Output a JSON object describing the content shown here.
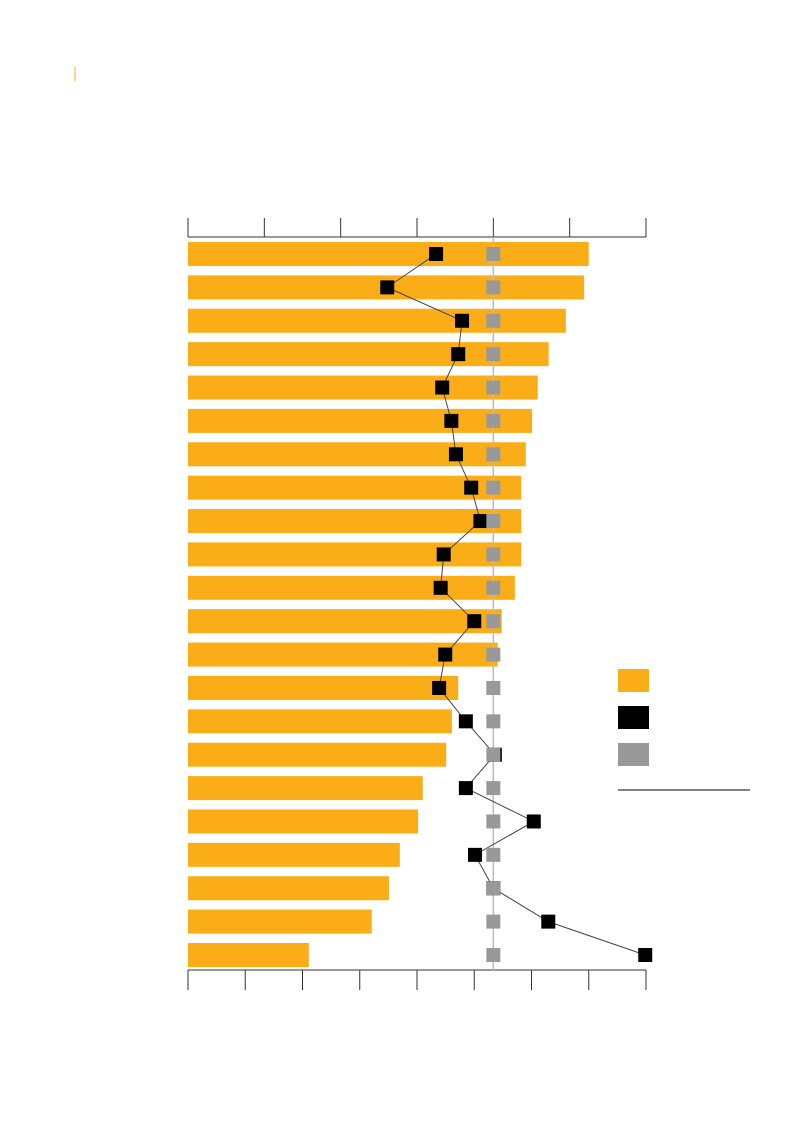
{
  "chart_data": {
    "type": "bar",
    "categories": [
      null,
      null,
      null,
      null,
      null,
      null,
      null,
      null,
      null,
      null,
      null,
      null,
      null,
      null,
      null,
      null,
      null,
      null,
      null,
      null,
      null,
      null
    ],
    "series": [
      {
        "color": "#fbad18",
        "values": [
          7.0,
          6.92,
          6.6,
          6.3,
          6.11,
          6.01,
          5.9,
          5.82,
          5.82,
          5.82,
          5.71,
          5.48,
          5.41,
          4.72,
          4.61,
          4.51,
          4.1,
          4.02,
          3.7,
          3.51,
          3.21,
          2.11
        ]
      },
      {
        "color": "#000000",
        "axis": "x2",
        "values": [
          3.25,
          2.61,
          3.59,
          3.54,
          3.33,
          3.45,
          3.51,
          3.71,
          3.83,
          3.35,
          3.31,
          3.75,
          3.37,
          3.29,
          3.64,
          4.02,
          3.64,
          4.53,
          3.76,
          4.0,
          4.72,
          5.99
        ]
      },
      {
        "color": "#999999",
        "axis": "x2",
        "values": [
          4,
          4,
          4,
          4,
          4,
          4,
          4,
          4,
          4,
          4,
          4,
          4,
          4,
          4,
          4,
          4,
          4,
          4,
          4,
          4,
          4,
          4
        ]
      }
    ],
    "xlim": [
      0,
      8
    ],
    "xticks": [
      0,
      1,
      2,
      3,
      4,
      5,
      6,
      7,
      8
    ],
    "x2lim": [
      0,
      6
    ],
    "x2ticks": [
      0,
      1,
      2,
      3,
      4,
      5,
      6
    ],
    "x2_reference": 4
  }
}
